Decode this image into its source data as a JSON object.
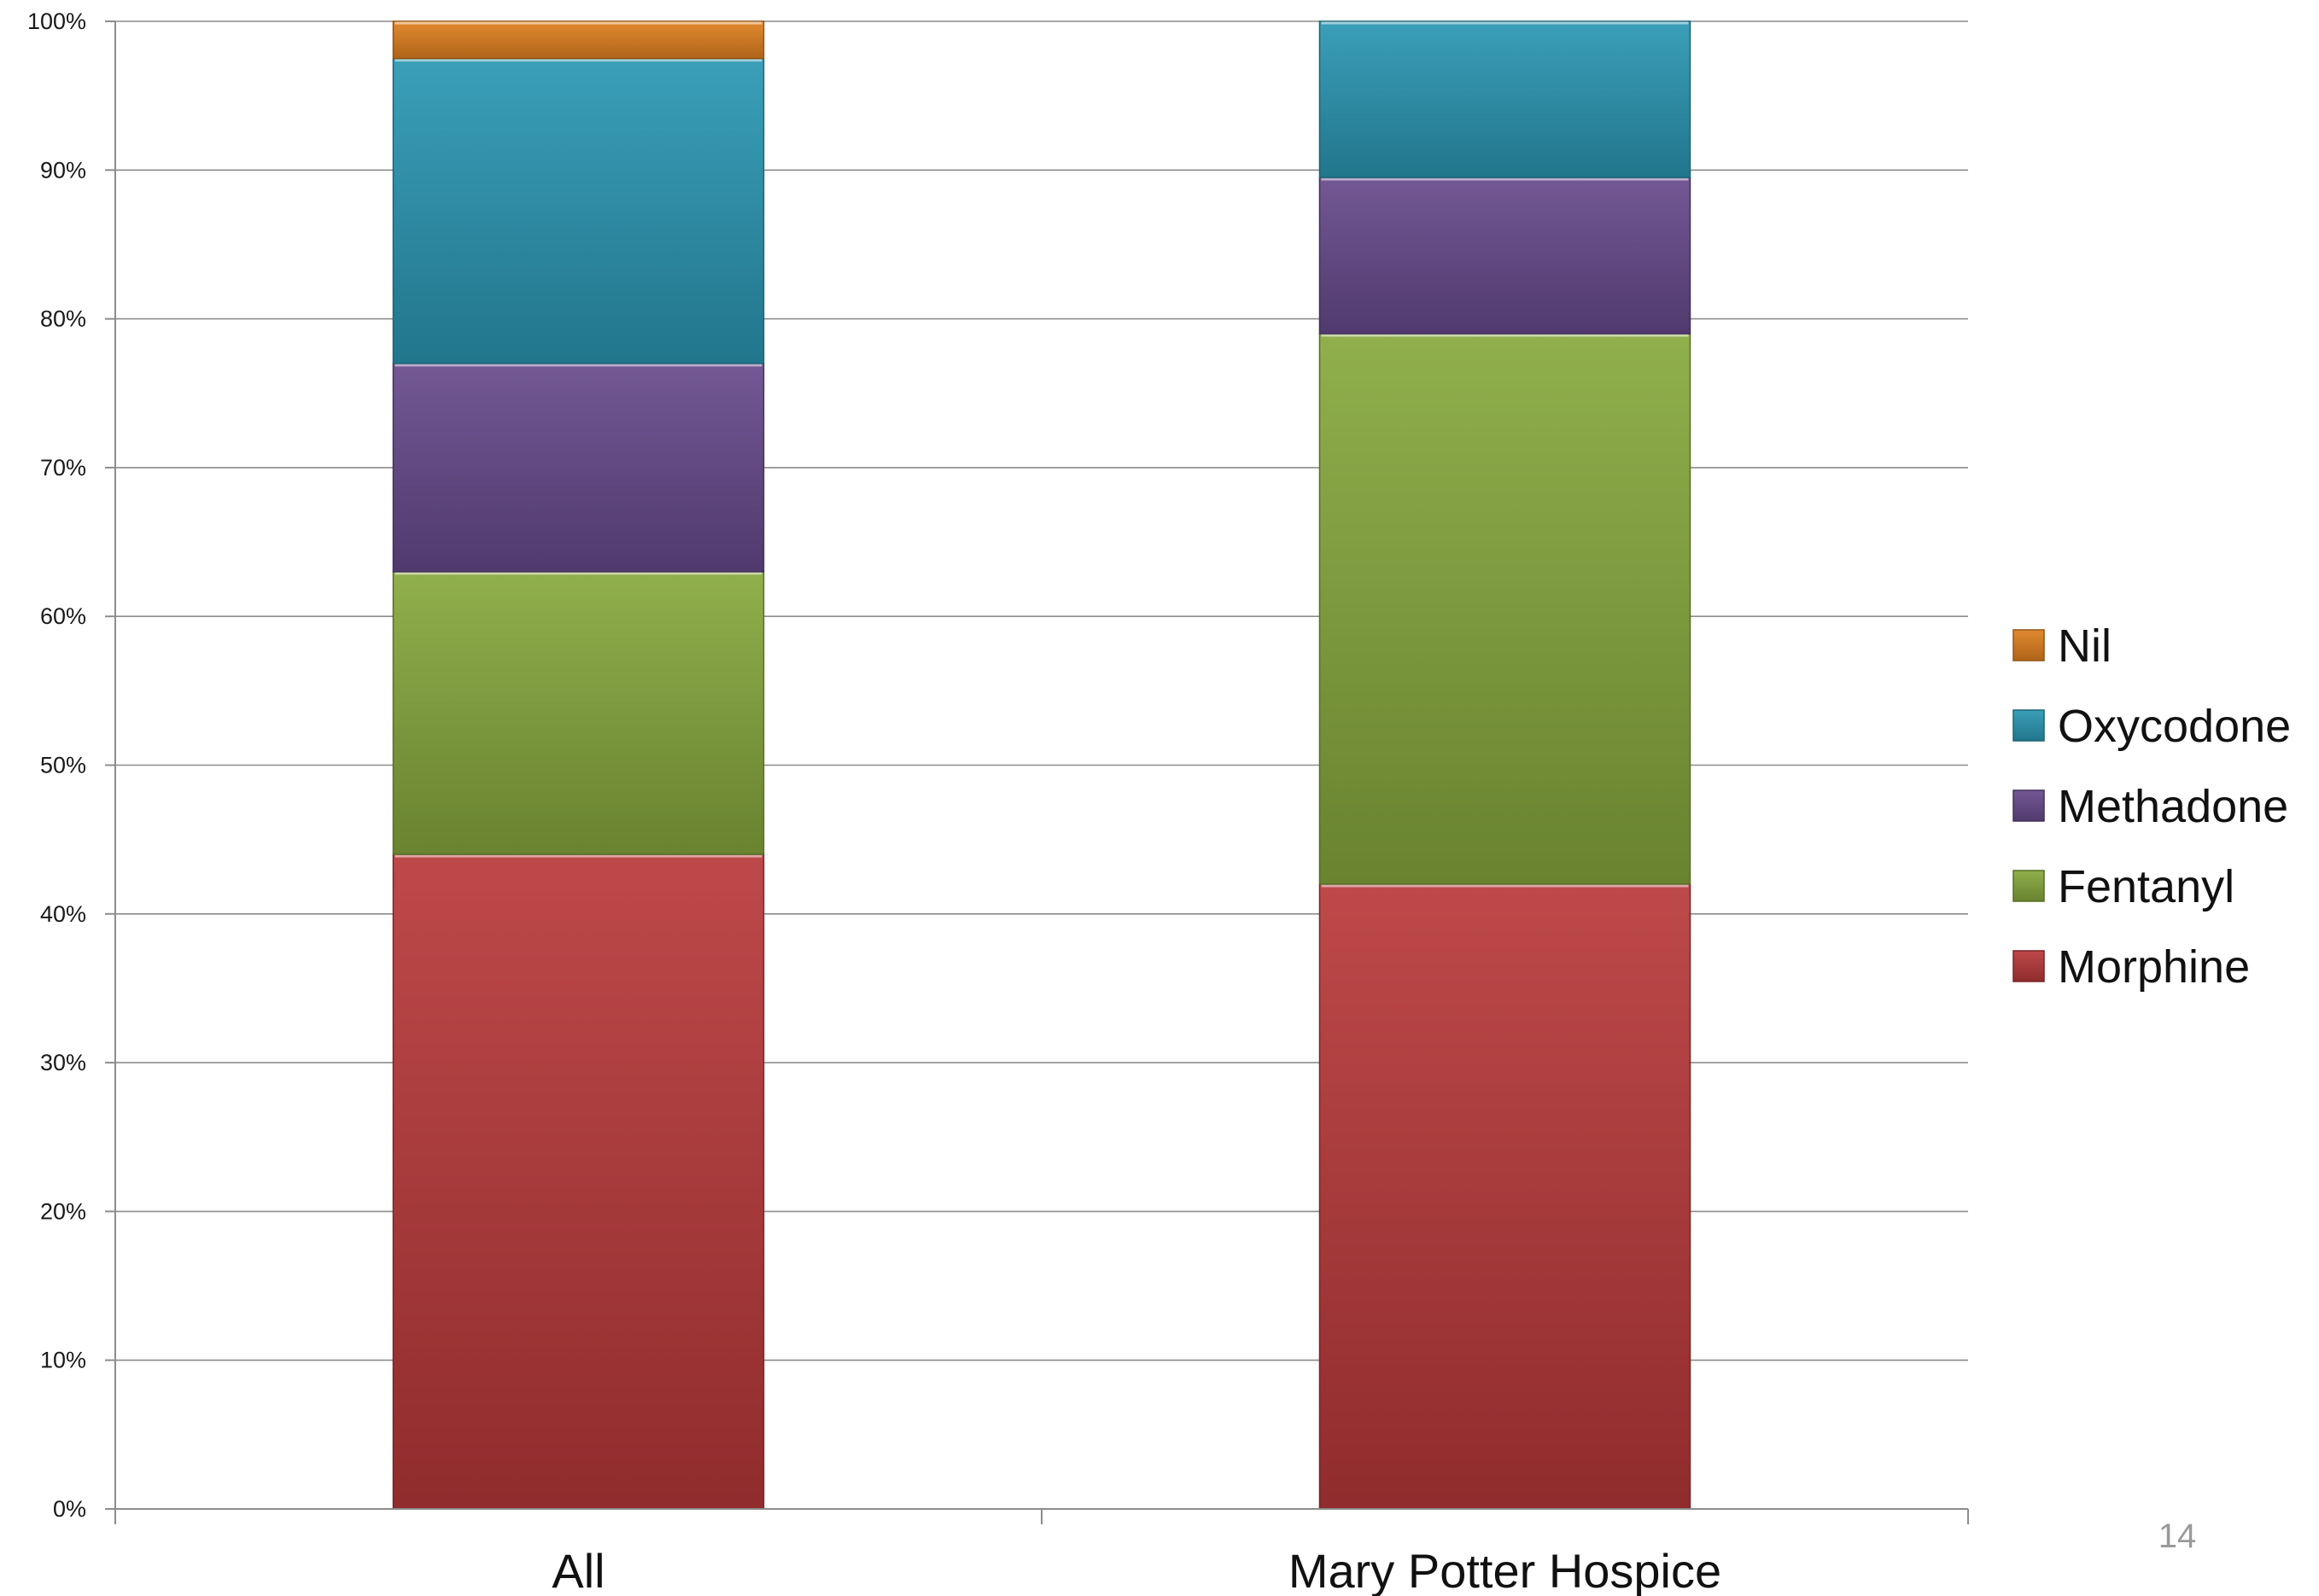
{
  "chart_data": {
    "type": "bar",
    "stacked": true,
    "percent_stacked": true,
    "title": "",
    "xlabel": "",
    "ylabel": "",
    "categories": [
      "All",
      "Mary Potter Hospice"
    ],
    "ylim": [
      0,
      100
    ],
    "yticks": [
      "0%",
      "10%",
      "20%",
      "30%",
      "40%",
      "50%",
      "60%",
      "70%",
      "80%",
      "90%",
      "100%"
    ],
    "grid": true,
    "legend_position": "right",
    "series": [
      {
        "name": "Morphine",
        "values": [
          44,
          42
        ],
        "color": "#b8393a"
      },
      {
        "name": "Fentanyl",
        "values": [
          19,
          37
        ],
        "color": "#86a83c"
      },
      {
        "name": "Methadone",
        "values": [
          14,
          10.5
        ],
        "color": "#674a8c"
      },
      {
        "name": "Oxycodone",
        "values": [
          20.5,
          10.5
        ],
        "color": "#2a97b3"
      },
      {
        "name": "Nil",
        "values": [
          2.5,
          0
        ],
        "color": "#e0801f"
      }
    ]
  },
  "page_number": "14"
}
